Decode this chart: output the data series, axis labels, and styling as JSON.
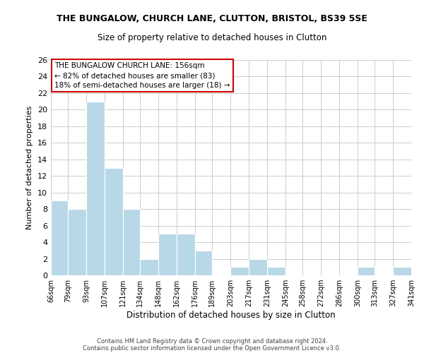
{
  "title": "THE BUNGALOW, CHURCH LANE, CLUTTON, BRISTOL, BS39 5SE",
  "subtitle": "Size of property relative to detached houses in Clutton",
  "xlabel": "Distribution of detached houses by size in Clutton",
  "ylabel": "Number of detached properties",
  "bar_color": "#b8d8e8",
  "bin_edges": [
    66,
    79,
    93,
    107,
    121,
    134,
    148,
    162,
    176,
    189,
    203,
    217,
    231,
    245,
    258,
    272,
    286,
    300,
    313,
    327,
    341
  ],
  "bin_labels": [
    "66sqm",
    "79sqm",
    "93sqm",
    "107sqm",
    "121sqm",
    "134sqm",
    "148sqm",
    "162sqm",
    "176sqm",
    "189sqm",
    "203sqm",
    "217sqm",
    "231sqm",
    "245sqm",
    "258sqm",
    "272sqm",
    "286sqm",
    "300sqm",
    "313sqm",
    "327sqm",
    "341sqm"
  ],
  "counts": [
    9,
    8,
    21,
    13,
    8,
    2,
    5,
    5,
    3,
    0,
    1,
    2,
    1,
    0,
    0,
    0,
    0,
    1,
    0,
    1
  ],
  "ylim": [
    0,
    26
  ],
  "yticks": [
    0,
    2,
    4,
    6,
    8,
    10,
    12,
    14,
    16,
    18,
    20,
    22,
    24,
    26
  ],
  "annotation_line1": "THE BUNGALOW CHURCH LANE: 156sqm",
  "annotation_line2": "← 82% of detached houses are smaller (83)",
  "annotation_line3": "18% of semi-detached houses are larger (18) →",
  "footer_line1": "Contains HM Land Registry data © Crown copyright and database right 2024.",
  "footer_line2": "Contains public sector information licensed under the Open Government Licence v3.0.",
  "background_color": "#ffffff",
  "grid_color": "#cccccc"
}
